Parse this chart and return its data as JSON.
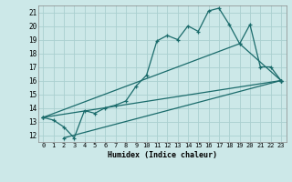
{
  "xlabel": "Humidex (Indice chaleur)",
  "xlim": [
    -0.5,
    23.5
  ],
  "ylim": [
    11.5,
    21.5
  ],
  "xticks": [
    0,
    1,
    2,
    3,
    4,
    5,
    6,
    7,
    8,
    9,
    10,
    11,
    12,
    13,
    14,
    15,
    16,
    17,
    18,
    19,
    20,
    21,
    22,
    23
  ],
  "yticks": [
    12,
    13,
    14,
    15,
    16,
    17,
    18,
    19,
    20,
    21
  ],
  "bg_color": "#cce8e8",
  "grid_color": "#aad0d0",
  "line_color": "#1a6b6b",
  "line1_x": [
    0,
    1,
    2,
    3,
    4,
    5,
    6,
    7,
    8,
    9,
    10,
    11,
    12,
    13,
    14,
    15,
    16,
    17,
    18,
    19,
    20,
    21,
    22,
    23
  ],
  "line1_y": [
    13.3,
    13.1,
    12.6,
    11.8,
    13.8,
    13.6,
    14.0,
    14.2,
    14.5,
    15.6,
    16.4,
    18.9,
    19.3,
    19.0,
    20.0,
    19.6,
    21.1,
    21.3,
    20.1,
    18.7,
    20.1,
    17.0,
    17.0,
    16.0
  ],
  "line2_x": [
    0,
    19,
    23
  ],
  "line2_y": [
    13.3,
    18.7,
    16.0
  ],
  "line3_x": [
    0,
    23
  ],
  "line3_y": [
    13.3,
    16.0
  ],
  "line4_x": [
    2,
    23
  ],
  "line4_y": [
    11.8,
    16.0
  ]
}
